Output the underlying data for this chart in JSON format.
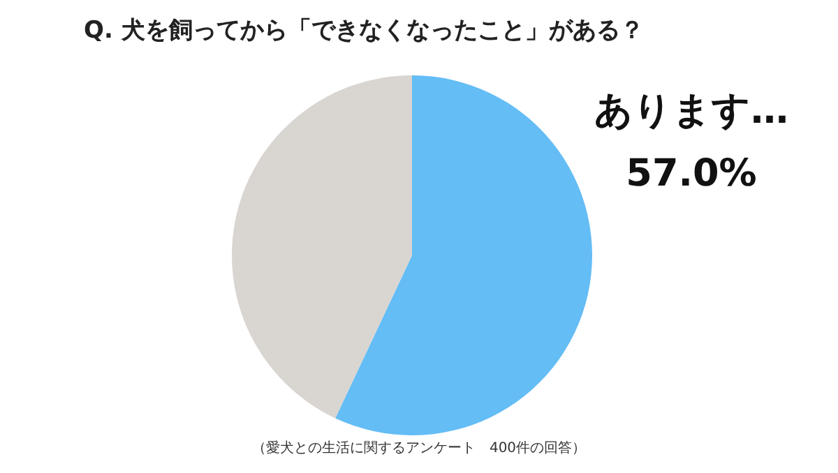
{
  "chart_data": {
    "type": "pie",
    "title": "Q.  犬を飼ってから「できなくなったこと」がある？",
    "categories": [
      "あります…",
      null
    ],
    "values": [
      57,
      43
    ],
    "value_labels": [
      "57.0%",
      null
    ],
    "colors": [
      "#64bdf5",
      "#d9d5d1"
    ],
    "annotations": [
      "（愛犬との生活に関するアンケート　400件の回答）"
    ]
  }
}
